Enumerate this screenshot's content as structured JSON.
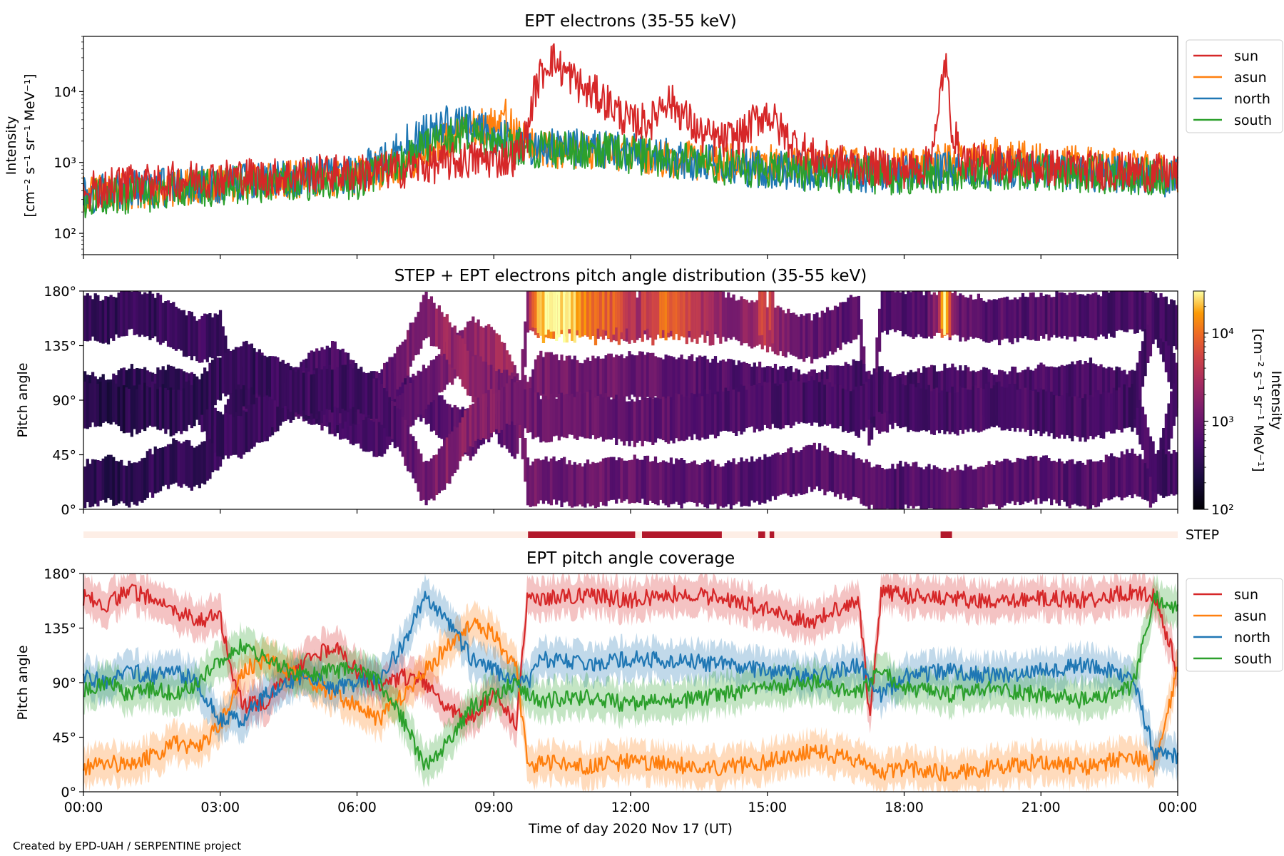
{
  "footer": "Created by EPD-UAH / SERPENTINE project",
  "xaxis": {
    "label": "Time of day 2020 Nov 17 (UT)",
    "ticks": [
      "00:00",
      "03:00",
      "06:00",
      "09:00",
      "12:00",
      "15:00",
      "18:00",
      "21:00",
      "00:00"
    ],
    "range_hours": [
      0,
      24
    ]
  },
  "colors": {
    "sun": "#d62728",
    "asun": "#ff7f0e",
    "north": "#1f77b4",
    "south": "#2ca02c",
    "step_on": "#b2182b",
    "step_off": "#fdeee6"
  },
  "chart_data": [
    {
      "type": "line",
      "title": "EPT electrons (35-55 keV)",
      "ylabel_line1": "Intensity",
      "ylabel_line2": "[cm⁻² s⁻¹ sr⁻¹ MeV⁻¹]",
      "yscale": "log",
      "ylim": [
        50,
        60000
      ],
      "yticks": [
        {
          "value": 100,
          "label": "10²"
        },
        {
          "value": 1000,
          "label": "10³"
        },
        {
          "value": 10000,
          "label": "10⁴"
        }
      ],
      "legend": "upper-right-outside",
      "series": [
        {
          "name": "sun",
          "color": "#d62728",
          "x": [
            0,
            0.5,
            1,
            1.5,
            2,
            2.5,
            3,
            3.5,
            4,
            4.5,
            5,
            5.5,
            6,
            6.5,
            7,
            7.5,
            8,
            8.5,
            9,
            9.5,
            9.75,
            10,
            10.25,
            10.5,
            10.75,
            11,
            11.25,
            11.5,
            11.75,
            12,
            12.5,
            12.75,
            13,
            13.25,
            13.5,
            14,
            14.5,
            14.75,
            15,
            15.25,
            15.5,
            16,
            16.5,
            17,
            17.5,
            18,
            18.5,
            18.75,
            18.9,
            19,
            19.2,
            19.5,
            20,
            20.5,
            21,
            21.5,
            22,
            22.5,
            23,
            23.5,
            24
          ],
          "y": [
            400,
            450,
            500,
            500,
            550,
            600,
            600,
            650,
            600,
            650,
            700,
            700,
            700,
            750,
            800,
            900,
            1000,
            1100,
            1100,
            1200,
            2500,
            15000,
            30000,
            20000,
            15000,
            10000,
            9000,
            7000,
            5000,
            3500,
            4000,
            8000,
            6000,
            4000,
            2500,
            2000,
            2500,
            4000,
            5000,
            3000,
            2000,
            1200,
            1000,
            900,
            850,
            800,
            900,
            3000,
            25000,
            4000,
            1200,
            1000,
            1000,
            900,
            850,
            850,
            800,
            750,
            750,
            700,
            700
          ]
        },
        {
          "name": "asun",
          "color": "#ff7f0e",
          "x": [
            0,
            1,
            2,
            3,
            4,
            5,
            6,
            7,
            7.5,
            8,
            8.5,
            9,
            9.25,
            9.5,
            10,
            11,
            12,
            13,
            14,
            15,
            16,
            17,
            18,
            19,
            20,
            21,
            22,
            23,
            24
          ],
          "y": [
            350,
            400,
            450,
            500,
            550,
            600,
            650,
            900,
            1400,
            2200,
            3000,
            3500,
            4500,
            2500,
            1500,
            1500,
            1300,
            1100,
            1000,
            950,
            900,
            900,
            850,
            1000,
            1200,
            1000,
            900,
            800,
            700
          ]
        },
        {
          "name": "north",
          "color": "#1f77b4",
          "x": [
            0,
            1,
            2,
            3,
            4,
            5,
            6,
            6.5,
            7,
            7.5,
            8,
            8.5,
            9,
            9.5,
            10,
            11,
            12,
            13,
            14,
            15,
            16,
            17,
            18,
            19,
            20,
            21,
            22,
            23,
            24
          ],
          "y": [
            350,
            400,
            450,
            500,
            550,
            650,
            700,
            1000,
            1700,
            2500,
            3500,
            3200,
            2400,
            1800,
            1700,
            1600,
            1400,
            1100,
            900,
            800,
            750,
            700,
            700,
            750,
            800,
            750,
            700,
            650,
            600
          ]
        },
        {
          "name": "south",
          "color": "#2ca02c",
          "x": [
            0,
            1,
            2,
            3,
            4,
            5,
            6,
            6.5,
            7,
            7.5,
            8,
            8.5,
            9,
            9.5,
            10,
            11,
            12,
            13,
            14,
            15,
            16,
            17,
            18,
            19,
            20,
            21,
            22,
            23,
            24
          ],
          "y": [
            300,
            350,
            400,
            450,
            500,
            550,
            550,
            700,
            1000,
            1600,
            2400,
            2600,
            2200,
            1700,
            1500,
            1500,
            1300,
            1100,
            900,
            800,
            700,
            650,
            650,
            700,
            750,
            750,
            700,
            650,
            600
          ]
        }
      ]
    },
    {
      "type": "heatmap",
      "title": "STEP + EPT electrons pitch angle distribution (35-55 keV)",
      "ylabel": "Pitch angle",
      "ylim": [
        0,
        180
      ],
      "yticks": [
        "0°",
        "45°",
        "90°",
        "135°",
        "180°"
      ],
      "colorbar": {
        "label_line1": "Intensity",
        "label_line2": "[cm⁻² s⁻¹ sr⁻¹ MeV⁻¹]",
        "scale": "log",
        "range": [
          100,
          30000
        ],
        "ticks": [
          {
            "value": 100,
            "label": "10²"
          },
          {
            "value": 1000,
            "label": "10³"
          },
          {
            "value": 10000,
            "label": "10⁴"
          }
        ],
        "colormap": "inferno-like"
      },
      "step_label": "STEP",
      "step_intervals_hours": [
        [
          9.75,
          12.1
        ],
        [
          12.25,
          14.0
        ],
        [
          14.8,
          14.95
        ],
        [
          15.05,
          15.15
        ],
        [
          18.8,
          19.05
        ]
      ]
    },
    {
      "type": "line",
      "title": "EPT pitch angle coverage",
      "ylabel": "Pitch angle",
      "ylim": [
        0,
        180
      ],
      "yticks": [
        "0°",
        "45°",
        "90°",
        "135°",
        "180°"
      ],
      "band_halfwidth_deg": 15,
      "legend": "upper-right-outside",
      "series": [
        {
          "name": "sun",
          "color": "#d62728",
          "x": [
            0,
            0.5,
            1,
            1.5,
            2,
            2.5,
            3,
            3.25,
            3.5,
            4,
            4.5,
            5,
            5.5,
            6,
            6.5,
            7,
            7.5,
            8,
            8.5,
            9,
            9.5,
            9.75,
            10,
            11,
            12,
            13,
            14,
            15,
            16,
            17,
            17.25,
            17.5,
            18,
            19,
            20,
            21,
            22,
            23,
            23.5,
            24
          ],
          "y": [
            160,
            155,
            165,
            160,
            150,
            140,
            145,
            100,
            70,
            75,
            95,
            110,
            120,
            100,
            85,
            95,
            90,
            70,
            60,
            80,
            55,
            165,
            160,
            162,
            158,
            163,
            160,
            150,
            140,
            160,
            60,
            165,
            162,
            160,
            155,
            160,
            158,
            165,
            160,
            100
          ]
        },
        {
          "name": "asun",
          "color": "#ff7f0e",
          "x": [
            0,
            0.5,
            1,
            1.5,
            2,
            2.5,
            3,
            3.5,
            4,
            4.5,
            5,
            5.5,
            6,
            6.5,
            7,
            7.5,
            8,
            8.5,
            9,
            9.5,
            9.75,
            10,
            11,
            12,
            13,
            14,
            15,
            16,
            17,
            17.5,
            18,
            19,
            20,
            21,
            22,
            23,
            23.5,
            24
          ],
          "y": [
            20,
            25,
            20,
            30,
            40,
            35,
            55,
            100,
            110,
            100,
            90,
            80,
            70,
            60,
            80,
            100,
            120,
            140,
            130,
            100,
            20,
            25,
            20,
            25,
            22,
            20,
            25,
            35,
            25,
            15,
            20,
            15,
            20,
            25,
            20,
            30,
            20,
            100
          ]
        },
        {
          "name": "north",
          "color": "#1f77b4",
          "x": [
            0,
            0.5,
            1,
            1.5,
            2,
            2.5,
            3,
            3.5,
            4,
            4.5,
            5,
            5.5,
            6,
            6.5,
            7,
            7.5,
            8,
            8.5,
            9,
            9.5,
            9.75,
            10,
            11,
            12,
            13,
            14,
            15,
            16,
            17,
            17.5,
            18,
            19,
            20,
            21,
            22,
            23,
            23.5,
            24
          ],
          "y": [
            95,
            90,
            100,
            95,
            100,
            90,
            60,
            60,
            80,
            90,
            95,
            85,
            90,
            95,
            120,
            160,
            140,
            110,
            100,
            90,
            90,
            110,
            105,
            110,
            108,
            105,
            100,
            95,
            105,
            80,
            95,
            100,
            95,
            100,
            105,
            95,
            30,
            30
          ]
        },
        {
          "name": "south",
          "color": "#2ca02c",
          "x": [
            0,
            0.5,
            1,
            1.5,
            2,
            2.5,
            3,
            3.5,
            4,
            4.5,
            5,
            5.5,
            6,
            6.5,
            7,
            7.5,
            8,
            8.5,
            9,
            9.5,
            9.75,
            10,
            11,
            12,
            13,
            14,
            15,
            16,
            17,
            17.5,
            18,
            19,
            20,
            21,
            22,
            23,
            23.5,
            24
          ],
          "y": [
            85,
            90,
            80,
            85,
            80,
            90,
            110,
            120,
            110,
            100,
            95,
            100,
            100,
            90,
            60,
            20,
            40,
            70,
            80,
            90,
            80,
            75,
            78,
            72,
            75,
            80,
            85,
            90,
            80,
            100,
            85,
            80,
            85,
            80,
            75,
            85,
            160,
            150
          ]
        }
      ]
    }
  ]
}
